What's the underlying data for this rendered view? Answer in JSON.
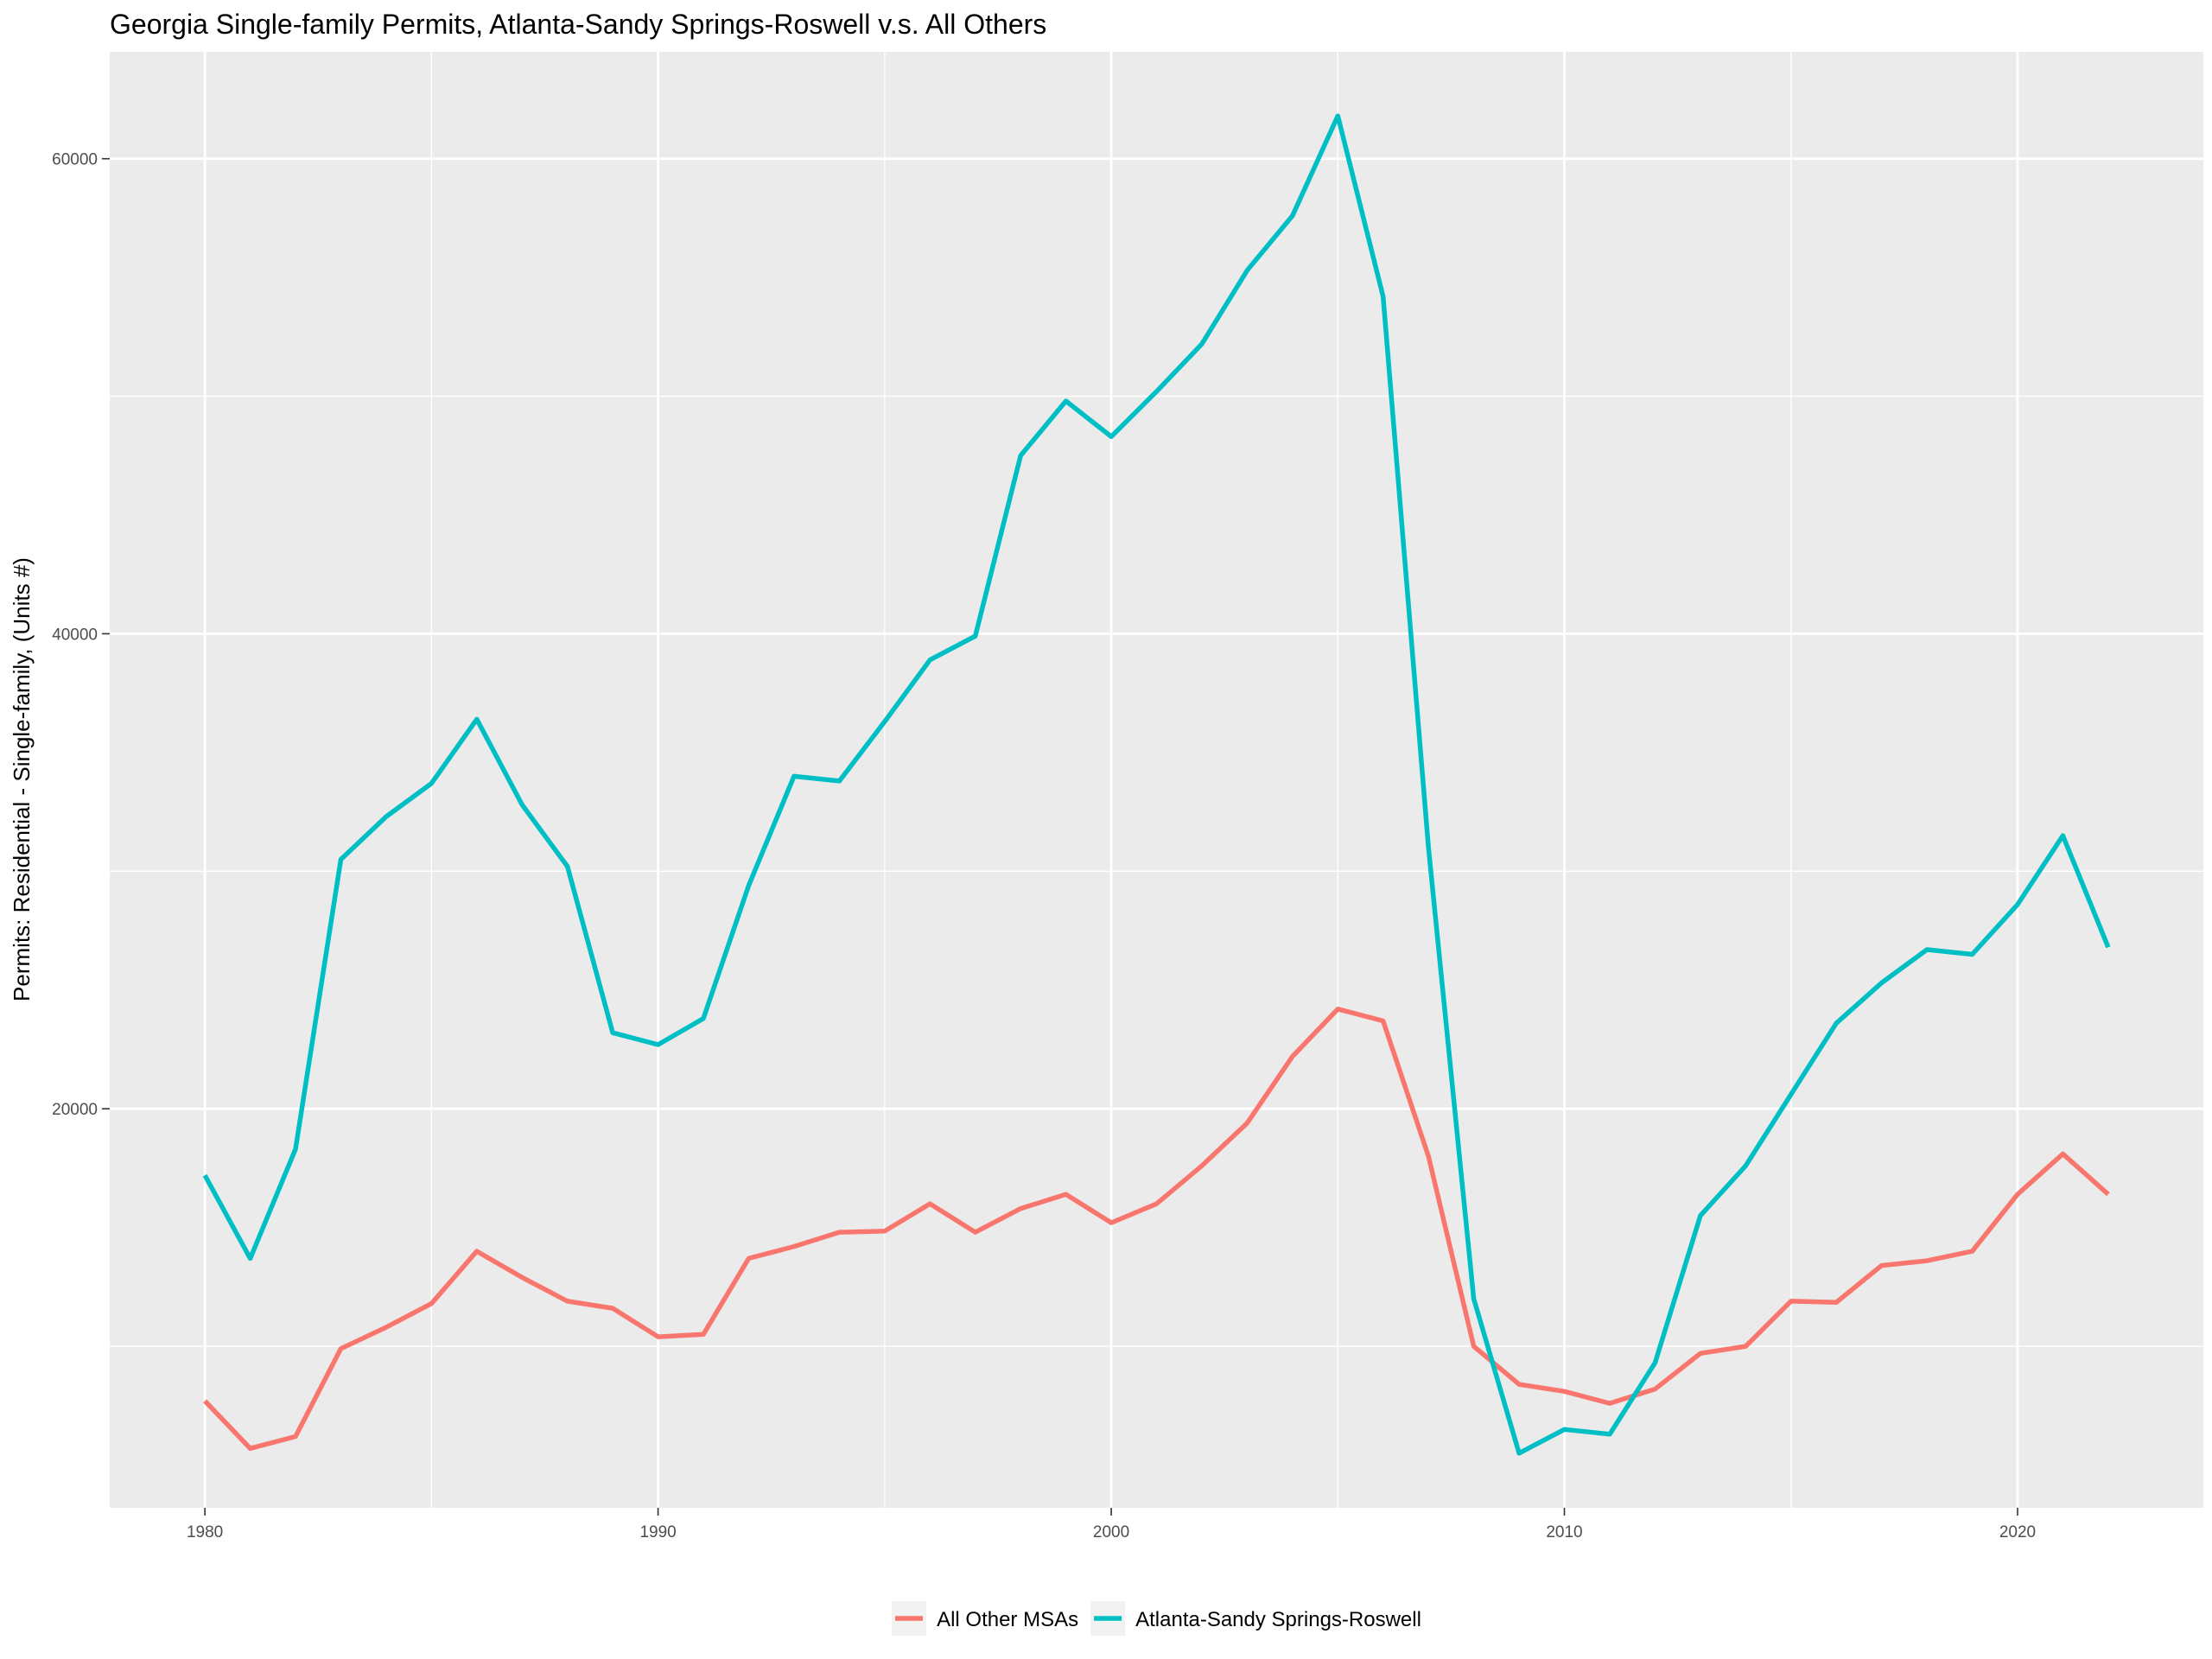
{
  "chart_data": {
    "type": "line",
    "title": "Georgia Single-family Permits, Atlanta-Sandy Springs-Roswell v.s. All Others",
    "xlabel": "",
    "ylabel": "Permits: Residential - Single-family, (Units #)",
    "xlim": [
      1977.9,
      2024.1
    ],
    "ylim": [
      3200,
      64500
    ],
    "x_ticks": [
      1980,
      1990,
      2000,
      2010,
      2020
    ],
    "y_ticks": [
      20000,
      40000,
      60000
    ],
    "grid": true,
    "legend_position": "bottom",
    "background": "#ebebeb",
    "x": [
      1980,
      1981,
      1982,
      1983,
      1984,
      1985,
      1986,
      1987,
      1988,
      1989,
      1990,
      1991,
      1992,
      1993,
      1994,
      1995,
      1996,
      1997,
      1998,
      1999,
      2000,
      2001,
      2002,
      2003,
      2004,
      2005,
      2006,
      2007,
      2008,
      2009,
      2010,
      2011,
      2012,
      2013,
      2014,
      2015,
      2016,
      2017,
      2018,
      2019,
      2020,
      2021,
      2022
    ],
    "series": [
      {
        "name": "All Other MSAs",
        "color": "#f8766d",
        "values": [
          7700,
          5700,
          6200,
          9900,
          10800,
          11800,
          14000,
          12900,
          11900,
          11600,
          10400,
          10500,
          13700,
          14200,
          14800,
          14850,
          16000,
          14800,
          15800,
          16400,
          15200,
          16000,
          17600,
          19400,
          22200,
          24200,
          23700,
          18000,
          10000,
          8400,
          8100,
          7600,
          8200,
          9700,
          10000,
          11900,
          11850,
          13400,
          13600,
          14000,
          16400,
          18100,
          16400
        ]
      },
      {
        "name": "Atlanta-Sandy Springs-Roswell",
        "color": "#00bfc4",
        "values": [
          17200,
          13700,
          18300,
          30500,
          32300,
          33700,
          36400,
          32800,
          30200,
          23200,
          22700,
          23800,
          29400,
          34000,
          33800,
          36300,
          38900,
          39900,
          47500,
          49800,
          48300,
          50200,
          52200,
          55300,
          57600,
          61800,
          54200,
          31000,
          12000,
          5500,
          6500,
          6300,
          9300,
          15500,
          17600,
          20600,
          23600,
          25300,
          26700,
          26500,
          28600,
          31500,
          26800
        ]
      }
    ]
  }
}
